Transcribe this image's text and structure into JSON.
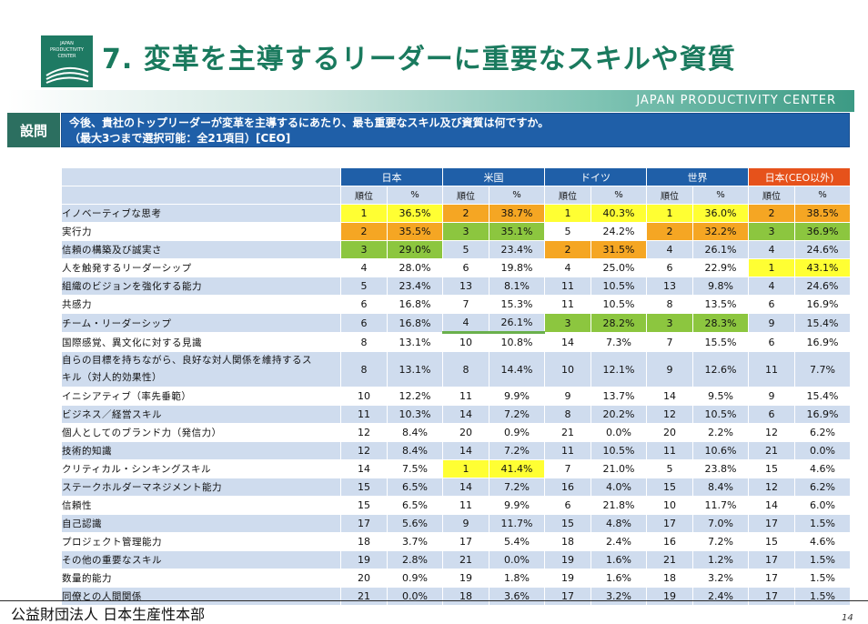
{
  "logo": {
    "lines": [
      "JAPAN",
      "PRODUCTIVITY",
      "CENTER"
    ]
  },
  "title": "7. 変革を主導するリーダーに重要なスキルや資質",
  "band_text": "JAPAN PRODUCTIVITY CENTER",
  "question": {
    "label": "設問",
    "line1": "今後、貴社のトップリーダーが変革を主導するにあたり、最も重要なスキル及び資質は何ですか。",
    "line2": "（最大3つまで選択可能：全21項目）[CEO]"
  },
  "table": {
    "groups": [
      "日本",
      "米国",
      "ドイツ",
      "世界",
      "日本(CEO以外)"
    ],
    "subheaders": [
      "順位",
      "%"
    ],
    "rows": [
      {
        "label": "イノベーティブな思考",
        "cells": [
          [
            "1",
            "36.5%"
          ],
          [
            "2",
            "38.7%"
          ],
          [
            "1",
            "40.3%"
          ],
          [
            "1",
            "36.0%"
          ],
          [
            "2",
            "38.5%"
          ]
        ]
      },
      {
        "label": "実行力",
        "cells": [
          [
            "2",
            "35.5%"
          ],
          [
            "3",
            "35.1%"
          ],
          [
            "5",
            "24.2%"
          ],
          [
            "2",
            "32.2%"
          ],
          [
            "3",
            "36.9%"
          ]
        ]
      },
      {
        "label": "信頼の構築及び誠実さ",
        "cells": [
          [
            "3",
            "29.0%"
          ],
          [
            "5",
            "23.4%"
          ],
          [
            "2",
            "31.5%"
          ],
          [
            "4",
            "26.1%"
          ],
          [
            "4",
            "24.6%"
          ]
        ]
      },
      {
        "label": "人を触発するリーダーシップ",
        "cells": [
          [
            "4",
            "28.0%"
          ],
          [
            "6",
            "19.8%"
          ],
          [
            "4",
            "25.0%"
          ],
          [
            "6",
            "22.9%"
          ],
          [
            "1",
            "43.1%"
          ]
        ]
      },
      {
        "label": "組織のビジョンを強化する能力",
        "cells": [
          [
            "5",
            "23.4%"
          ],
          [
            "13",
            "8.1%"
          ],
          [
            "11",
            "10.5%"
          ],
          [
            "13",
            "9.8%"
          ],
          [
            "4",
            "24.6%"
          ]
        ]
      },
      {
        "label": "共感力",
        "cells": [
          [
            "6",
            "16.8%"
          ],
          [
            "7",
            "15.3%"
          ],
          [
            "11",
            "10.5%"
          ],
          [
            "8",
            "13.5%"
          ],
          [
            "6",
            "16.9%"
          ]
        ]
      },
      {
        "label": "チーム・リーダーシップ",
        "cells": [
          [
            "6",
            "16.8%"
          ],
          [
            "4",
            "26.1%"
          ],
          [
            "3",
            "28.2%"
          ],
          [
            "3",
            "28.3%"
          ],
          [
            "9",
            "15.4%"
          ]
        ]
      },
      {
        "label": "国際感覚、異文化に対する見識",
        "cells": [
          [
            "8",
            "13.1%"
          ],
          [
            "10",
            "10.8%"
          ],
          [
            "14",
            "7.3%"
          ],
          [
            "7",
            "15.5%"
          ],
          [
            "6",
            "16.9%"
          ]
        ]
      },
      {
        "label": "自らの目標を持ちながら、良好な対人関係を維持するス",
        "label2": "キル（対人的効果性）",
        "cells": [
          [
            "8",
            "13.1%"
          ],
          [
            "8",
            "14.4%"
          ],
          [
            "10",
            "12.1%"
          ],
          [
            "9",
            "12.6%"
          ],
          [
            "11",
            "7.7%"
          ]
        ]
      },
      {
        "label": "イニシアティブ（率先垂範）",
        "cells": [
          [
            "10",
            "12.2%"
          ],
          [
            "11",
            "9.9%"
          ],
          [
            "9",
            "13.7%"
          ],
          [
            "14",
            "9.5%"
          ],
          [
            "9",
            "15.4%"
          ]
        ]
      },
      {
        "label": "ビジネス／経営スキル",
        "cells": [
          [
            "11",
            "10.3%"
          ],
          [
            "14",
            "7.2%"
          ],
          [
            "8",
            "20.2%"
          ],
          [
            "12",
            "10.5%"
          ],
          [
            "6",
            "16.9%"
          ]
        ]
      },
      {
        "label": "個人としてのブランド力（発信力）",
        "cells": [
          [
            "12",
            "8.4%"
          ],
          [
            "20",
            "0.9%"
          ],
          [
            "21",
            "0.0%"
          ],
          [
            "20",
            "2.2%"
          ],
          [
            "12",
            "6.2%"
          ]
        ]
      },
      {
        "label": "技術的知識",
        "cells": [
          [
            "12",
            "8.4%"
          ],
          [
            "14",
            "7.2%"
          ],
          [
            "11",
            "10.5%"
          ],
          [
            "11",
            "10.6%"
          ],
          [
            "21",
            "0.0%"
          ]
        ]
      },
      {
        "label": "クリティカル・シンキングスキル",
        "cells": [
          [
            "14",
            "7.5%"
          ],
          [
            "1",
            "41.4%"
          ],
          [
            "7",
            "21.0%"
          ],
          [
            "5",
            "23.8%"
          ],
          [
            "15",
            "4.6%"
          ]
        ]
      },
      {
        "label": "ステークホルダーマネジメント能力",
        "cells": [
          [
            "15",
            "6.5%"
          ],
          [
            "14",
            "7.2%"
          ],
          [
            "16",
            "4.0%"
          ],
          [
            "15",
            "8.4%"
          ],
          [
            "12",
            "6.2%"
          ]
        ]
      },
      {
        "label": "信頼性",
        "cells": [
          [
            "15",
            "6.5%"
          ],
          [
            "11",
            "9.9%"
          ],
          [
            "6",
            "21.8%"
          ],
          [
            "10",
            "11.7%"
          ],
          [
            "14",
            "6.0%"
          ]
        ]
      },
      {
        "label": "自己認識",
        "cells": [
          [
            "17",
            "5.6%"
          ],
          [
            "9",
            "11.7%"
          ],
          [
            "15",
            "4.8%"
          ],
          [
            "17",
            "7.0%"
          ],
          [
            "17",
            "1.5%"
          ]
        ]
      },
      {
        "label": "プロジェクト管理能力",
        "cells": [
          [
            "18",
            "3.7%"
          ],
          [
            "17",
            "5.4%"
          ],
          [
            "18",
            "2.4%"
          ],
          [
            "16",
            "7.2%"
          ],
          [
            "15",
            "4.6%"
          ]
        ]
      },
      {
        "label": "その他の重要なスキル",
        "cells": [
          [
            "19",
            "2.8%"
          ],
          [
            "21",
            "0.0%"
          ],
          [
            "19",
            "1.6%"
          ],
          [
            "21",
            "1.2%"
          ],
          [
            "17",
            "1.5%"
          ]
        ]
      },
      {
        "label": "数量的能力",
        "cells": [
          [
            "20",
            "0.9%"
          ],
          [
            "19",
            "1.8%"
          ],
          [
            "19",
            "1.6%"
          ],
          [
            "18",
            "3.2%"
          ],
          [
            "17",
            "1.5%"
          ]
        ]
      },
      {
        "label": "同僚との人間関係",
        "cells": [
          [
            "21",
            "0.0%"
          ],
          [
            "18",
            "3.6%"
          ],
          [
            "17",
            "3.2%"
          ],
          [
            "19",
            "2.4%"
          ],
          [
            "17",
            "1.5%"
          ]
        ]
      }
    ],
    "highlight_colors": {
      "rank1": "#ffff33",
      "rank2": "#f5a623",
      "rank3": "#8cc63f"
    }
  },
  "footer": "公益財団法人 日本生産性本部",
  "page_number": "14"
}
